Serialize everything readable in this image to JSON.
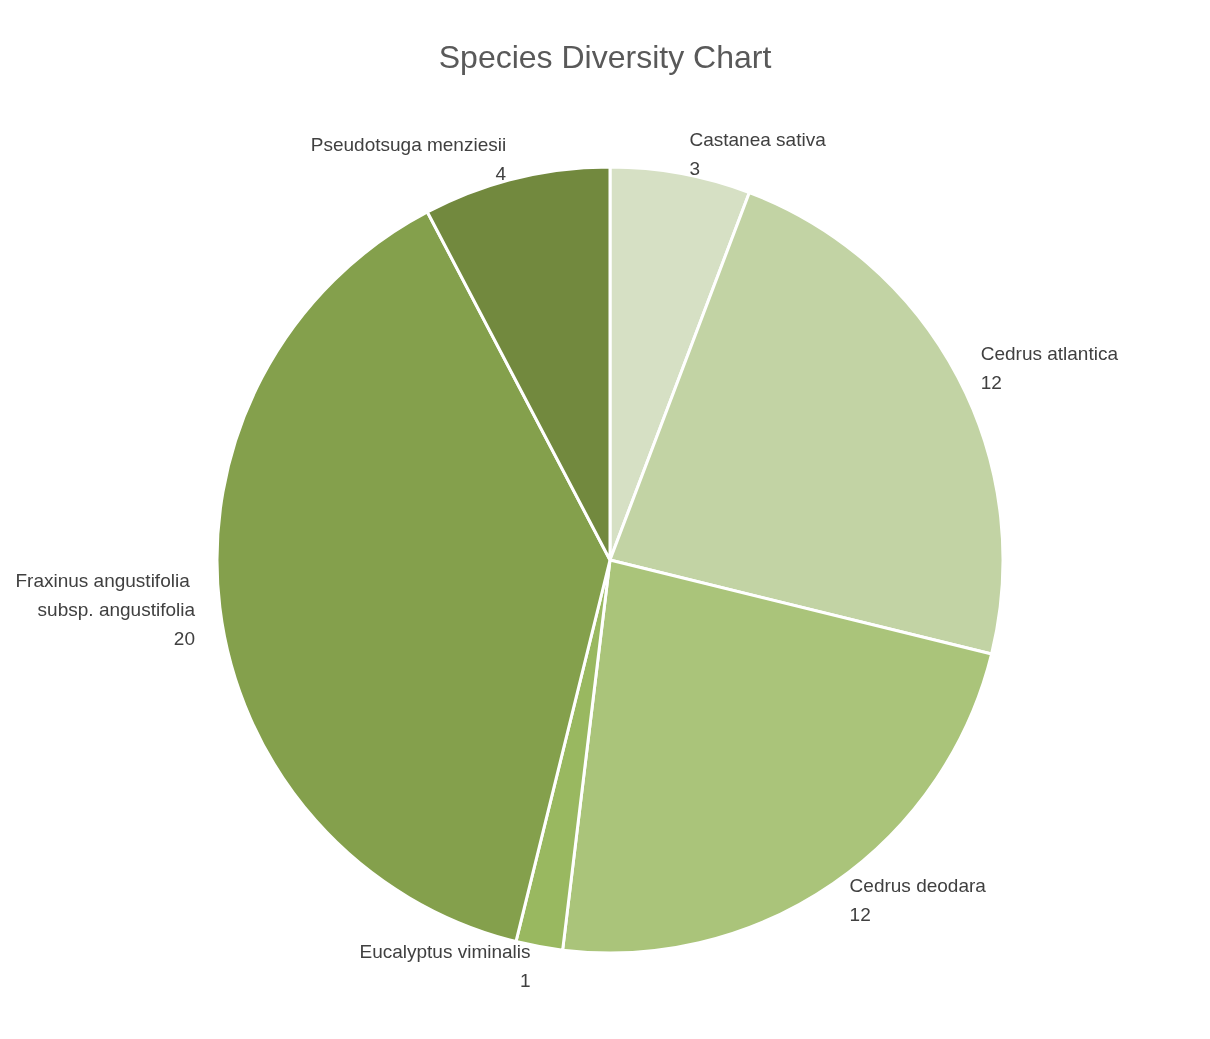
{
  "chart_data": {
    "type": "pie",
    "title": "Species Diversity Chart",
    "categories": [
      "Castanea sativa",
      "Cedrus atlantica",
      "Cedrus deodara",
      "Eucalyptus viminalis",
      "Fraxinus angustifolia subsp. angustifolia",
      "Pseudotsuga menziesii"
    ],
    "values": [
      3,
      12,
      12,
      1,
      20,
      4
    ],
    "colors": [
      "#d6e0c4",
      "#c2d3a4",
      "#aac47a",
      "#99b860",
      "#84a04c",
      "#72893e"
    ],
    "data_labels": true,
    "legend": false
  }
}
